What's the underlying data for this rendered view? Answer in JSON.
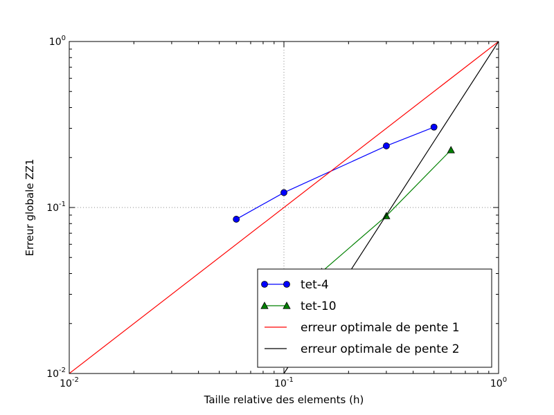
{
  "chart_data": {
    "type": "line",
    "title": "",
    "xlabel": "Taille relative des elements (h)",
    "ylabel": "Erreur globale ZZ1",
    "xscale": "log",
    "yscale": "log",
    "xlim": [
      0.01,
      1
    ],
    "ylim": [
      0.01,
      1
    ],
    "grid": "dotted major grid",
    "legend_position": "lower-right",
    "x_ticks": [
      {
        "base": "10",
        "exp": "-2"
      },
      {
        "base": "10",
        "exp": "-1"
      },
      {
        "base": "10",
        "exp": "0"
      }
    ],
    "y_ticks": [
      {
        "base": "10",
        "exp": "-2"
      },
      {
        "base": "10",
        "exp": "-1"
      },
      {
        "base": "10",
        "exp": "0"
      }
    ],
    "series": [
      {
        "name": "tet-4",
        "color": "#0000ff",
        "marker": "circle",
        "x": [
          0.06,
          0.1,
          0.3,
          0.5
        ],
        "y": [
          0.085,
          0.123,
          0.235,
          0.305
        ]
      },
      {
        "name": "tet-10",
        "color": "#008000",
        "marker": "triangle",
        "x": [
          0.15,
          0.3,
          0.6
        ],
        "y": [
          0.041,
          0.089,
          0.222
        ]
      },
      {
        "name": "erreur optimale de pente 1",
        "color": "#ff0000",
        "marker": "none",
        "x": [
          0.01,
          1
        ],
        "y": [
          0.01,
          1
        ]
      },
      {
        "name": "erreur optimale de pente 2",
        "color": "#000000",
        "marker": "none",
        "x": [
          0.1,
          1
        ],
        "y": [
          0.01,
          1
        ]
      }
    ]
  }
}
